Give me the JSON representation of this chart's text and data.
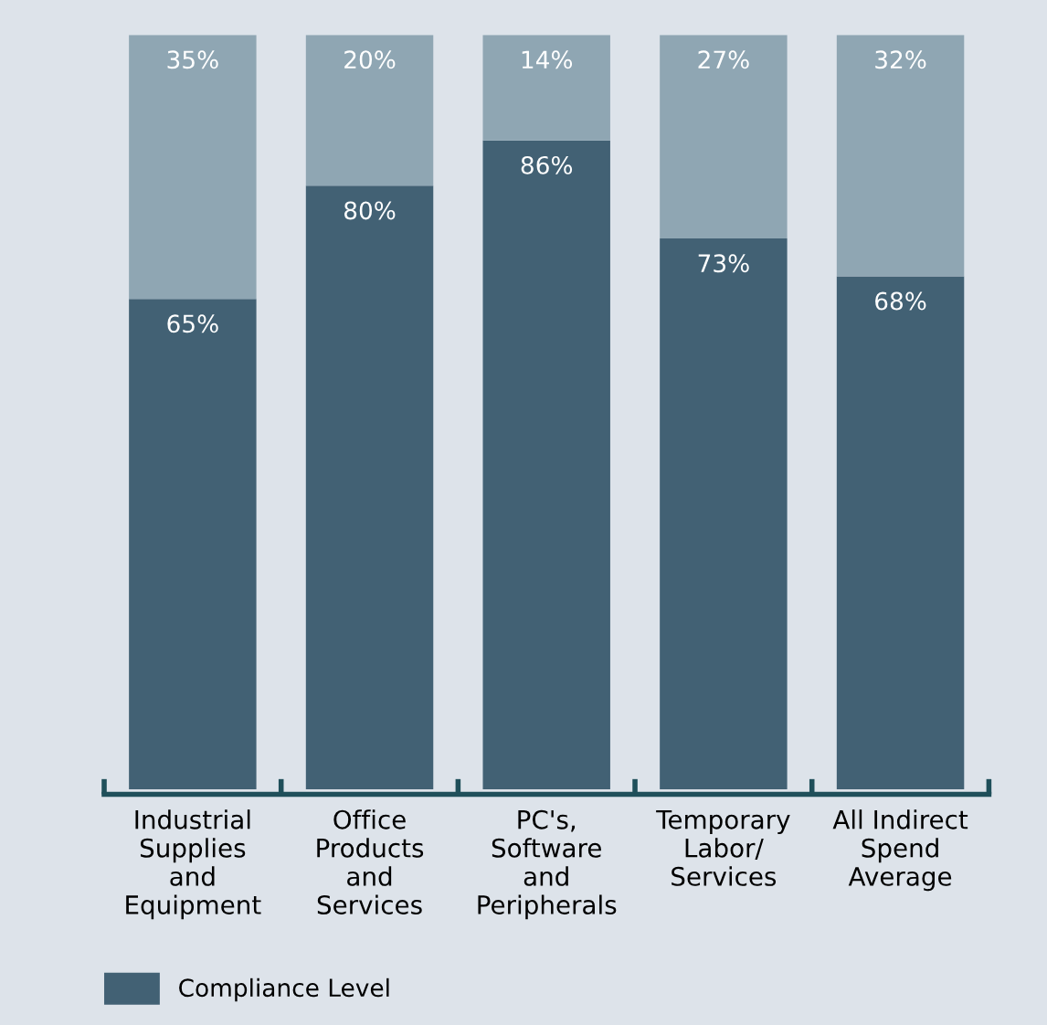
{
  "chart_data": {
    "type": "bar",
    "stacked": true,
    "legend": "bottom left",
    "grid": false,
    "tick_labels": "x",
    "categories": [
      "Industrial\nSupplies\nand\nEquipment",
      "Office\nProducts\nand\nServices",
      "PC's,\nSoftware\nand\nPeripherals",
      "Temporary\nLabor/\nServices",
      "All Indirect\nSpend\nAverage"
    ],
    "series": [
      {
        "name": "Compliance Level",
        "color": "#426174",
        "values": [
          65,
          80,
          86,
          73,
          68
        ],
        "value_labels": [
          "65%",
          "80%",
          "86%",
          "73%",
          "68%"
        ]
      },
      {
        "color": "#8fa6b3",
        "values": [
          35,
          20,
          14,
          27,
          32
        ],
        "value_labels": [
          "35%",
          "20%",
          "14%",
          "27%",
          "32%"
        ]
      }
    ]
  }
}
